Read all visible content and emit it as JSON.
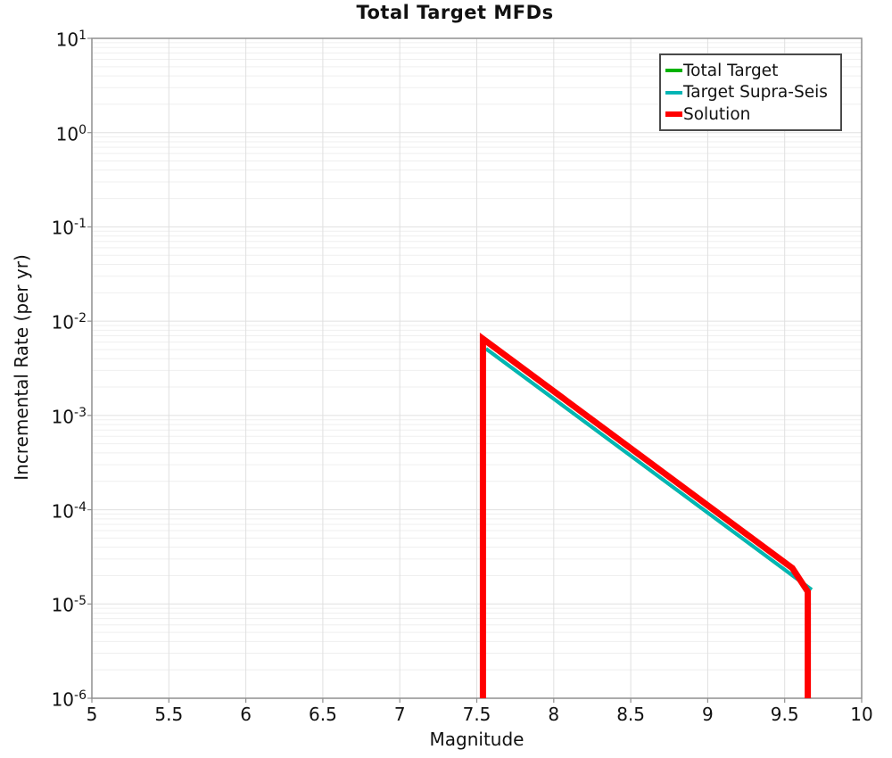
{
  "title": "Total Target MFDs",
  "chart_data": {
    "type": "line",
    "title": "Total Target MFDs",
    "xlabel": "Magnitude",
    "ylabel": "Incremental Rate (per yr)",
    "x_axis": {
      "min": 5,
      "max": 10,
      "scale": "linear",
      "tick_values": [
        5,
        5.5,
        6,
        6.5,
        7,
        7.5,
        8,
        8.5,
        9,
        9.5,
        10
      ],
      "tick_labels": [
        "5",
        "5.5",
        "6",
        "6.5",
        "7",
        "7.5",
        "8",
        "8.5",
        "9",
        "9.5",
        "10"
      ]
    },
    "y_axis": {
      "min": 1e-06,
      "max": 10,
      "scale": "log",
      "tick_exponents": [
        1,
        0,
        -1,
        -2,
        -3,
        -4,
        -5,
        -6
      ],
      "tick_base": "10"
    },
    "grid": {
      "show_major": true,
      "show_minor": true,
      "major_color": "#e0e0e0",
      "minor_color": "#efefef"
    },
    "frame": {
      "border_color": "#8f8f8f",
      "tick_color": "#8f8f8f"
    },
    "legend": {
      "position": "top-right",
      "border_color": "#4a4a4a",
      "background": "#ffffff"
    },
    "series": [
      {
        "name": "Total Target",
        "color": "#00b200",
        "width": 4,
        "points": [
          [
            7.56,
            0.0051
          ],
          [
            9.675,
            1.42e-05
          ]
        ]
      },
      {
        "name": "Target Supra-Seis",
        "color": "#00b5b5",
        "width": 4,
        "points": [
          [
            7.56,
            0.0051
          ],
          [
            9.675,
            1.42e-05
          ]
        ]
      },
      {
        "name": "Solution",
        "color": "#ff0000",
        "width": 7,
        "points": [
          [
            7.54,
            1e-06
          ],
          [
            7.54,
            0.0065
          ],
          [
            9.55,
            2.4e-05
          ],
          [
            9.65,
            1.35e-05
          ],
          [
            9.65,
            1e-06
          ]
        ]
      }
    ]
  }
}
